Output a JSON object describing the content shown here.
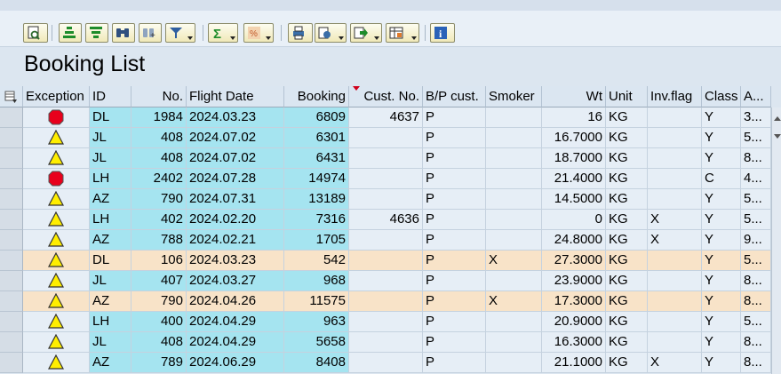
{
  "title": "Booking List",
  "toolbar": {
    "buttons": [
      {
        "name": "details-icon",
        "dropdown": false
      },
      {
        "name": "sort-ascending-icon",
        "dropdown": false
      },
      {
        "name": "sort-descending-icon",
        "dropdown": false
      },
      {
        "name": "find-icon",
        "dropdown": false
      },
      {
        "name": "find-next-icon",
        "dropdown": false
      },
      {
        "name": "filter-icon",
        "dropdown": true
      },
      {
        "name": "sum-icon",
        "dropdown": true
      },
      {
        "name": "subtotals-icon",
        "dropdown": true
      },
      {
        "name": "print-preview-icon",
        "dropdown": false
      },
      {
        "name": "views-icon",
        "dropdown": true
      },
      {
        "name": "export-icon",
        "dropdown": true
      },
      {
        "name": "change-layout-icon",
        "dropdown": true
      },
      {
        "name": "information-icon",
        "dropdown": false
      }
    ]
  },
  "columns": [
    "Exception",
    "ID",
    "No.",
    "Flight Date",
    "Booking",
    "Cust. No.",
    "B/P cust.",
    "Smoker",
    "Wt",
    "Unit",
    "Inv.flag",
    "Class",
    "A..."
  ],
  "colors": {
    "key_column": "#a5e4f0",
    "highlight_row": "#f8e3c8",
    "standard_row": "#e6eef6",
    "status_red": "#e8001c",
    "status_yellow": "#ffee00"
  },
  "rows": [
    {
      "exception": "red",
      "id": "DL",
      "no": "1984",
      "date": "2024.03.23",
      "booking": "6809",
      "cust": "4637",
      "bp": "P",
      "smoker": "",
      "wt": "16",
      "unit": "KG",
      "inv": "",
      "cls": "Y",
      "a": "3...",
      "highlight": false
    },
    {
      "exception": "yellow",
      "id": "JL",
      "no": "408",
      "date": "2024.07.02",
      "booking": "6301",
      "cust": "",
      "bp": "P",
      "smoker": "",
      "wt": "16.7000",
      "unit": "KG",
      "inv": "",
      "cls": "Y",
      "a": "5...",
      "highlight": false
    },
    {
      "exception": "yellow",
      "id": "JL",
      "no": "408",
      "date": "2024.07.02",
      "booking": "6431",
      "cust": "",
      "bp": "P",
      "smoker": "",
      "wt": "18.7000",
      "unit": "KG",
      "inv": "",
      "cls": "Y",
      "a": "8...",
      "highlight": false
    },
    {
      "exception": "red",
      "id": "LH",
      "no": "2402",
      "date": "2024.07.28",
      "booking": "14974",
      "cust": "",
      "bp": "P",
      "smoker": "",
      "wt": "21.4000",
      "unit": "KG",
      "inv": "",
      "cls": "C",
      "a": "4...",
      "highlight": false
    },
    {
      "exception": "yellow",
      "id": "AZ",
      "no": "790",
      "date": "2024.07.31",
      "booking": "13189",
      "cust": "",
      "bp": "P",
      "smoker": "",
      "wt": "14.5000",
      "unit": "KG",
      "inv": "",
      "cls": "Y",
      "a": "5...",
      "highlight": false
    },
    {
      "exception": "yellow",
      "id": "LH",
      "no": "402",
      "date": "2024.02.20",
      "booking": "7316",
      "cust": "4636",
      "bp": "P",
      "smoker": "",
      "wt": "0",
      "unit": "KG",
      "inv": "X",
      "cls": "Y",
      "a": "5...",
      "highlight": false
    },
    {
      "exception": "yellow",
      "id": "AZ",
      "no": "788",
      "date": "2024.02.21",
      "booking": "1705",
      "cust": "",
      "bp": "P",
      "smoker": "",
      "wt": "24.8000",
      "unit": "KG",
      "inv": "X",
      "cls": "Y",
      "a": "9...",
      "highlight": false
    },
    {
      "exception": "yellow",
      "id": "DL",
      "no": "106",
      "date": "2024.03.23",
      "booking": "542",
      "cust": "",
      "bp": "P",
      "smoker": "X",
      "wt": "27.3000",
      "unit": "KG",
      "inv": "",
      "cls": "Y",
      "a": "5...",
      "highlight": true
    },
    {
      "exception": "yellow",
      "id": "JL",
      "no": "407",
      "date": "2024.03.27",
      "booking": "968",
      "cust": "",
      "bp": "P",
      "smoker": "",
      "wt": "23.9000",
      "unit": "KG",
      "inv": "",
      "cls": "Y",
      "a": "8...",
      "highlight": false
    },
    {
      "exception": "yellow",
      "id": "AZ",
      "no": "790",
      "date": "2024.04.26",
      "booking": "11575",
      "cust": "",
      "bp": "P",
      "smoker": "X",
      "wt": "17.3000",
      "unit": "KG",
      "inv": "",
      "cls": "Y",
      "a": "8...",
      "highlight": true
    },
    {
      "exception": "yellow",
      "id": "LH",
      "no": "400",
      "date": "2024.04.29",
      "booking": "963",
      "cust": "",
      "bp": "P",
      "smoker": "",
      "wt": "20.9000",
      "unit": "KG",
      "inv": "",
      "cls": "Y",
      "a": "5...",
      "highlight": false
    },
    {
      "exception": "yellow",
      "id": "JL",
      "no": "408",
      "date": "2024.04.29",
      "booking": "5658",
      "cust": "",
      "bp": "P",
      "smoker": "",
      "wt": "16.3000",
      "unit": "KG",
      "inv": "",
      "cls": "Y",
      "a": "8...",
      "highlight": false
    },
    {
      "exception": "yellow",
      "id": "AZ",
      "no": "789",
      "date": "2024.06.29",
      "booking": "8408",
      "cust": "",
      "bp": "P",
      "smoker": "",
      "wt": "21.1000",
      "unit": "KG",
      "inv": "X",
      "cls": "Y",
      "a": "8...",
      "highlight": false
    }
  ]
}
